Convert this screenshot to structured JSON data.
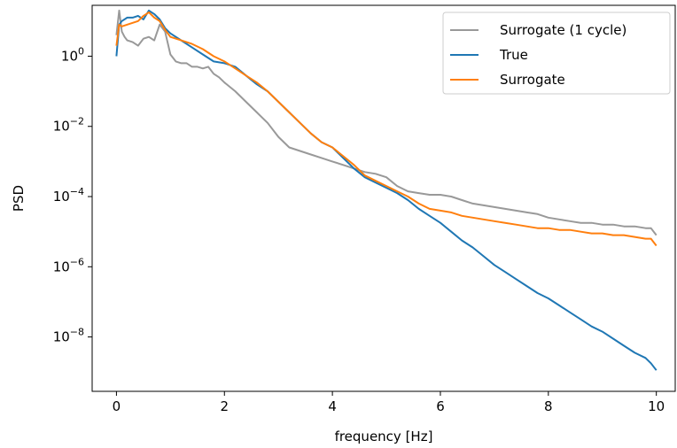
{
  "chart_data": {
    "type": "line",
    "xlabel": "frequency [Hz]",
    "ylabel": "PSD",
    "xlim": [
      -0.45,
      10.35
    ],
    "ylim_log10": [
      -9.55,
      1.45
    ],
    "yscale": "log",
    "grid": false,
    "legend_placement": "top-right",
    "x_ticks": [
      {
        "value": 0,
        "label": "0"
      },
      {
        "value": 2,
        "label": "2"
      },
      {
        "value": 4,
        "label": "4"
      },
      {
        "value": 6,
        "label": "6"
      },
      {
        "value": 8,
        "label": "8"
      },
      {
        "value": 10,
        "label": "10"
      }
    ],
    "y_ticks": [
      {
        "exp": 0,
        "base": "10",
        "power": "0"
      },
      {
        "exp": -2,
        "base": "10",
        "power": "−2"
      },
      {
        "exp": -4,
        "base": "10",
        "power": "−4"
      },
      {
        "exp": -6,
        "base": "10",
        "power": "−6"
      },
      {
        "exp": -8,
        "base": "10",
        "power": "−8"
      }
    ],
    "series": [
      {
        "name": "Surrogate (1 cycle)",
        "color": "#999999",
        "x": [
          0,
          0.05,
          0.1,
          0.15,
          0.2,
          0.3,
          0.4,
          0.5,
          0.6,
          0.7,
          0.8,
          0.9,
          1.0,
          1.1,
          1.2,
          1.3,
          1.4,
          1.5,
          1.6,
          1.7,
          1.8,
          1.9,
          2.0,
          2.2,
          2.4,
          2.6,
          2.8,
          3.0,
          3.2,
          3.4,
          3.6,
          3.8,
          4.0,
          4.2,
          4.4,
          4.6,
          4.8,
          5.0,
          5.2,
          5.4,
          5.6,
          5.8,
          6.0,
          6.2,
          6.4,
          6.6,
          6.8,
          7.0,
          7.2,
          7.4,
          7.6,
          7.8,
          8.0,
          8.2,
          8.4,
          8.6,
          8.8,
          9.0,
          9.2,
          9.4,
          9.6,
          9.8,
          9.9,
          10.0
        ],
        "log10_psd": [
          0.6,
          1.3,
          0.7,
          0.55,
          0.45,
          0.4,
          0.3,
          0.5,
          0.55,
          0.45,
          0.9,
          0.7,
          0.05,
          -0.15,
          -0.2,
          -0.2,
          -0.3,
          -0.3,
          -0.35,
          -0.3,
          -0.5,
          -0.6,
          -0.75,
          -1.0,
          -1.3,
          -1.6,
          -1.9,
          -2.3,
          -2.6,
          -2.7,
          -2.8,
          -2.9,
          -3.0,
          -3.1,
          -3.2,
          -3.3,
          -3.35,
          -3.45,
          -3.7,
          -3.85,
          -3.9,
          -3.95,
          -3.95,
          -4.0,
          -4.1,
          -4.2,
          -4.25,
          -4.3,
          -4.35,
          -4.4,
          -4.45,
          -4.5,
          -4.6,
          -4.65,
          -4.7,
          -4.75,
          -4.75,
          -4.8,
          -4.8,
          -4.85,
          -4.85,
          -4.9,
          -4.9,
          -5.1
        ]
      },
      {
        "name": "True",
        "color": "#1f77b4",
        "x": [
          0,
          0.05,
          0.1,
          0.2,
          0.3,
          0.4,
          0.5,
          0.6,
          0.7,
          0.8,
          0.9,
          1.0,
          1.2,
          1.4,
          1.6,
          1.8,
          2.0,
          2.2,
          2.4,
          2.6,
          2.8,
          3.0,
          3.2,
          3.4,
          3.6,
          3.8,
          4.0,
          4.2,
          4.4,
          4.6,
          4.8,
          5.0,
          5.2,
          5.4,
          5.6,
          5.8,
          6.0,
          6.2,
          6.4,
          6.6,
          6.8,
          7.0,
          7.2,
          7.4,
          7.6,
          7.8,
          8.0,
          8.2,
          8.4,
          8.6,
          8.8,
          9.0,
          9.2,
          9.4,
          9.6,
          9.8,
          9.9,
          10.0
        ],
        "log10_psd": [
          0.0,
          0.9,
          1.0,
          1.1,
          1.1,
          1.15,
          1.05,
          1.3,
          1.2,
          1.05,
          0.8,
          0.65,
          0.45,
          0.25,
          0.05,
          -0.15,
          -0.2,
          -0.3,
          -0.55,
          -0.8,
          -1.0,
          -1.3,
          -1.6,
          -1.9,
          -2.2,
          -2.45,
          -2.6,
          -2.9,
          -3.2,
          -3.45,
          -3.6,
          -3.75,
          -3.9,
          -4.1,
          -4.35,
          -4.55,
          -4.75,
          -5.0,
          -5.25,
          -5.45,
          -5.7,
          -5.95,
          -6.15,
          -6.35,
          -6.55,
          -6.75,
          -6.9,
          -7.1,
          -7.3,
          -7.5,
          -7.7,
          -7.85,
          -8.05,
          -8.25,
          -8.45,
          -8.6,
          -8.75,
          -8.95
        ]
      },
      {
        "name": "Surrogate",
        "color": "#ff7f0e",
        "x": [
          0,
          0.05,
          0.1,
          0.2,
          0.3,
          0.4,
          0.5,
          0.6,
          0.7,
          0.8,
          0.9,
          1.0,
          1.2,
          1.4,
          1.6,
          1.8,
          2.0,
          2.2,
          2.4,
          2.6,
          2.8,
          3.0,
          3.2,
          3.4,
          3.6,
          3.8,
          4.0,
          4.2,
          4.4,
          4.6,
          4.8,
          5.0,
          5.2,
          5.4,
          5.6,
          5.8,
          6.0,
          6.2,
          6.4,
          6.6,
          6.8,
          7.0,
          7.2,
          7.4,
          7.6,
          7.8,
          8.0,
          8.2,
          8.4,
          8.6,
          8.8,
          9.0,
          9.2,
          9.4,
          9.6,
          9.8,
          9.9,
          10.0
        ],
        "log10_psd": [
          0.3,
          0.9,
          0.85,
          0.9,
          0.95,
          1.0,
          1.15,
          1.25,
          1.1,
          1.0,
          0.75,
          0.55,
          0.45,
          0.35,
          0.2,
          0.0,
          -0.15,
          -0.35,
          -0.55,
          -0.75,
          -1.0,
          -1.3,
          -1.6,
          -1.9,
          -2.2,
          -2.45,
          -2.6,
          -2.85,
          -3.1,
          -3.4,
          -3.55,
          -3.7,
          -3.85,
          -4.0,
          -4.2,
          -4.35,
          -4.4,
          -4.45,
          -4.55,
          -4.6,
          -4.65,
          -4.7,
          -4.75,
          -4.8,
          -4.85,
          -4.9,
          -4.9,
          -4.95,
          -4.95,
          -5.0,
          -5.05,
          -5.05,
          -5.1,
          -5.1,
          -5.15,
          -5.2,
          -5.2,
          -5.4
        ]
      }
    ]
  }
}
